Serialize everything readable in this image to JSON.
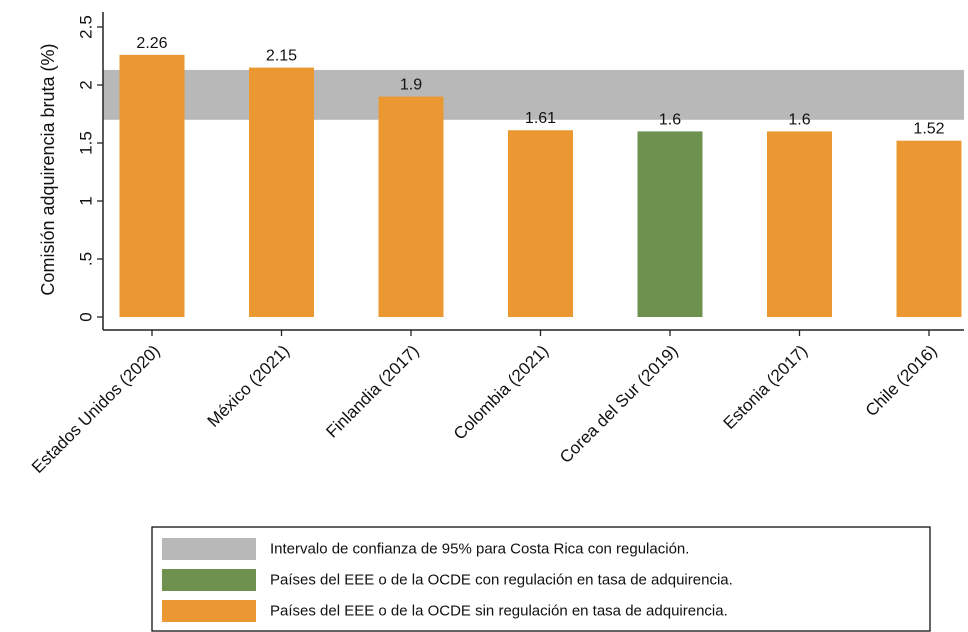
{
  "chart_data": {
    "type": "bar",
    "title": "",
    "ylabel": "Comisión adquirencia bruta (%)",
    "ylim": [
      0,
      2.5
    ],
    "yticks": [
      {
        "value": 0,
        "label": "0"
      },
      {
        "value": 0.5,
        "label": ".5"
      },
      {
        "value": 1,
        "label": "1"
      },
      {
        "value": 1.5,
        "label": "1.5"
      },
      {
        "value": 2,
        "label": "2"
      },
      {
        "value": 2.5,
        "label": "2.5"
      }
    ],
    "categories": [
      "Estados Unidos (2020)",
      "México (2021)",
      "Finlandia (2017)",
      "Colombia (2021)",
      "Corea del Sur (2019)",
      "Estonia (2017)",
      "Chile (2016)"
    ],
    "values": [
      2.26,
      2.15,
      1.9,
      1.61,
      1.6,
      1.6,
      1.52
    ],
    "value_labels": [
      "2.26",
      "2.15",
      "1.9",
      "1.61",
      "1.6",
      "1.6",
      "1.52"
    ],
    "groups": [
      "sin",
      "sin",
      "sin",
      "sin",
      "con",
      "sin",
      "sin"
    ],
    "confidence_band": {
      "low": 1.7,
      "high": 2.13
    },
    "colors": {
      "band": "#b8b8b8",
      "con": "#6f9150",
      "sin": "#ec9832",
      "axis": "#222222"
    },
    "legend": {
      "position": "bottom",
      "entries": [
        {
          "key": "band",
          "label": "Intervalo de confianza de 95% para Costa Rica  con regulación."
        },
        {
          "key": "con",
          "label": "Países del EEE o de la OCDE con regulación en tasa de adquirencia."
        },
        {
          "key": "sin",
          "label": "Países del EEE o de la OCDE sin regulación en tasa de adquirencia."
        }
      ]
    },
    "grid": false
  }
}
